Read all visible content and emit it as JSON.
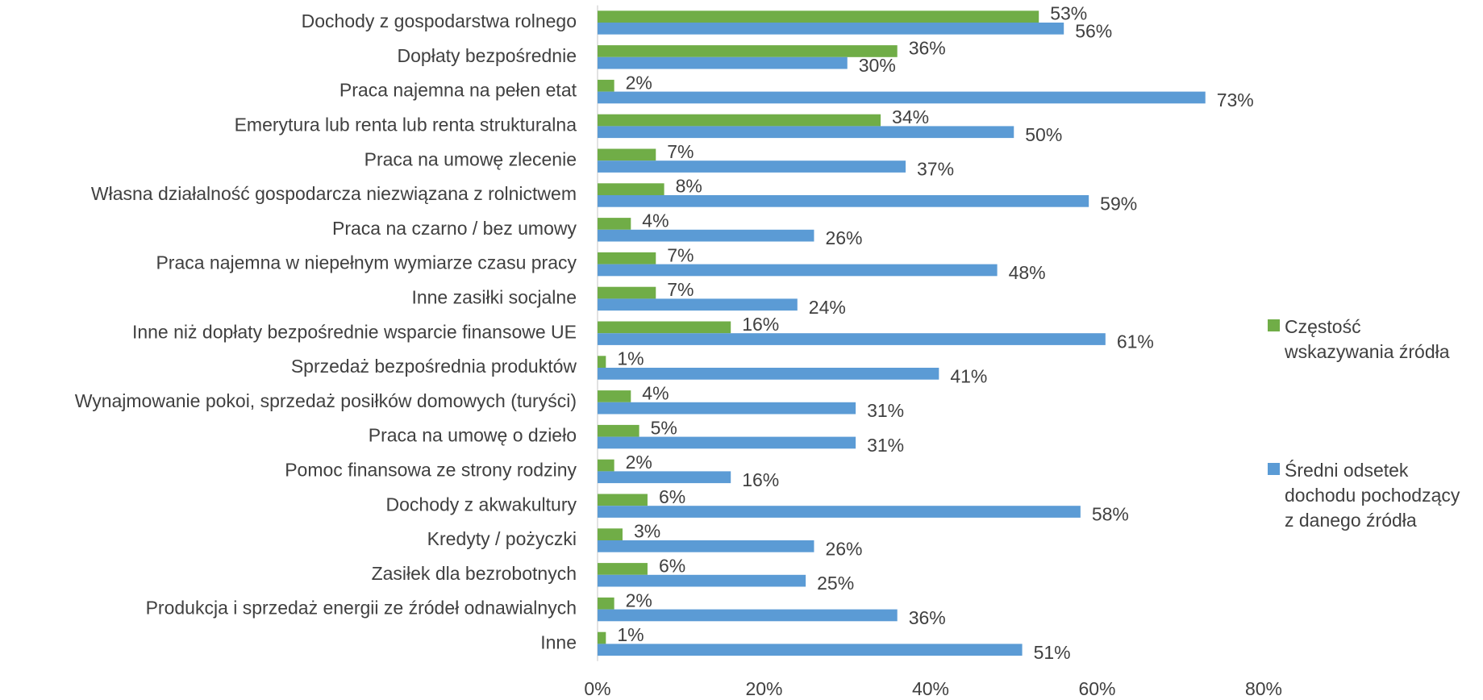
{
  "chart_data": {
    "type": "hbar",
    "categories": [
      "Dochody z gospodarstwa rolnego",
      "Dopłaty bezpośrednie",
      "Praca najemna na pełen etat",
      "Emerytura lub renta lub renta strukturalna",
      "Praca na umowę zlecenie",
      "Własna działalność gospodarcza niezwiązana z rolnictwem",
      "Praca na czarno / bez umowy",
      "Praca najemna w niepełnym wymiarze czasu pracy",
      "Inne zasiłki socjalne",
      "Inne niż dopłaty bezpośrednie wsparcie finansowe UE",
      "Sprzedaż bezpośrednia produktów",
      "Wynajmowanie pokoi, sprzedaż posiłków domowych (turyści)",
      "Praca na umowę o dzieło",
      "Pomoc finansowa ze strony rodziny",
      "Dochody z akwakultury",
      "Kredyty / pożyczki",
      "Zasiłek dla bezrobotnych",
      "Produkcja i sprzedaż energii ze źródeł odnawialnych",
      "Inne"
    ],
    "series": [
      {
        "name": "Częstość wskazywania źródła",
        "color": "#70ad47",
        "values": [
          53,
          36,
          2,
          34,
          7,
          8,
          4,
          7,
          7,
          16,
          1,
          4,
          5,
          2,
          6,
          3,
          6,
          2,
          1
        ],
        "value_labels": [
          "53%",
          "36%",
          "2%",
          "34%",
          "7%",
          "8%",
          "4%",
          "7%",
          "7%",
          "16%",
          "1%",
          "4%",
          "5%",
          "2%",
          "6%",
          "3%",
          "6%",
          "2%",
          "1%"
        ]
      },
      {
        "name": "Średni odsetek dochodu pochodzący z danego źródła",
        "color": "#5b9bd5",
        "values": [
          56,
          30,
          73,
          50,
          37,
          59,
          26,
          48,
          24,
          61,
          41,
          31,
          31,
          16,
          58,
          26,
          25,
          36,
          51
        ],
        "value_labels": [
          "56%",
          "30%",
          "73%",
          "50%",
          "37%",
          "59%",
          "26%",
          "48%",
          "24%",
          "61%",
          "41%",
          "31%",
          "31%",
          "16%",
          "58%",
          "26%",
          "25%",
          "36%",
          "51%"
        ]
      }
    ],
    "xlim": [
      0,
      80
    ],
    "xticks": [
      {
        "value": 0,
        "label": "0%"
      },
      {
        "value": 20,
        "label": "20%"
      },
      {
        "value": 40,
        "label": "40%"
      },
      {
        "value": 60,
        "label": "60%"
      },
      {
        "value": 80,
        "label": "80%"
      }
    ],
    "legend": "right"
  }
}
